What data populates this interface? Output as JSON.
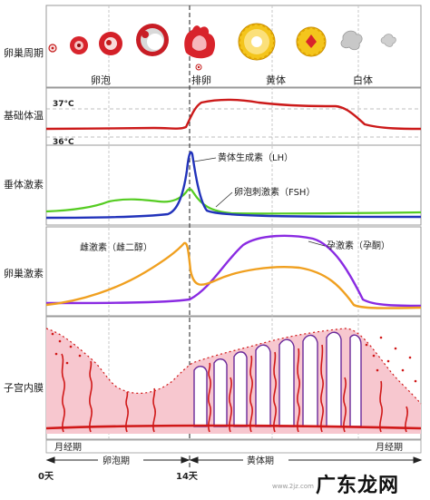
{
  "row_labels": {
    "ovarian_cycle": "卵巢周期",
    "basal_temp": "基础体温",
    "pituitary": "垂体激素",
    "ovarian_hormone": "卵巢激素",
    "endometrium": "子宫内膜"
  },
  "ovary_stage_labels": {
    "follicle": "卵泡",
    "ovulation": "排卵",
    "corpus_luteum": "黄体",
    "corpus_albicans": "白体"
  },
  "temperature": {
    "high": "37°C",
    "low": "36°C"
  },
  "hormones": {
    "lh": "黄体生成素（LH）",
    "fsh": "卵泡刺激素（FSH）",
    "estrogen": "雌激素（雌二醇）",
    "progesterone": "孕激素（孕酮）"
  },
  "phases": {
    "menstrual_start": "月经期",
    "follicular": "卵泡期",
    "luteal": "黄体期",
    "menstrual_end": "月经期"
  },
  "days": {
    "start": "0天",
    "ovulation": "14天"
  },
  "watermark": {
    "text": "广东龙网",
    "sub": "www.2jz.com"
  },
  "colors": {
    "temp_line": "#cc1a1a",
    "lh_line": "#2233bb",
    "fsh_line": "#55cc22",
    "estrogen_line": "#f0a020",
    "progesterone_line": "#8a2be2",
    "endometrium_fill": "#f7c7cf",
    "vessel": "#d01818",
    "gland": "#6a2a9a",
    "corpus_luteum": "#f2c21a",
    "border": "#999999"
  }
}
